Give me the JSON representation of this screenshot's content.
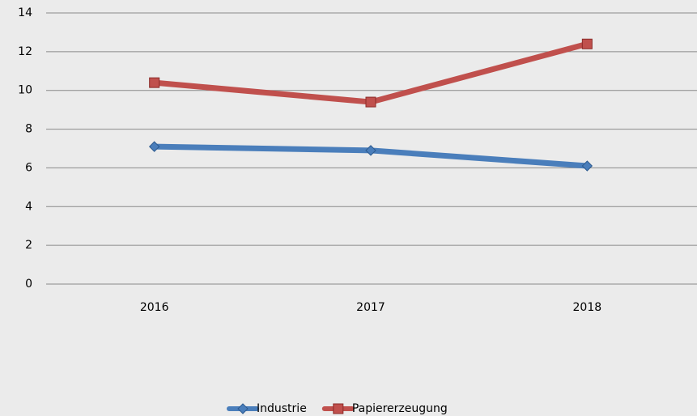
{
  "chart_data": {
    "type": "line",
    "categories": [
      "2016",
      "2017",
      "2018"
    ],
    "series": [
      {
        "name": "Industrie",
        "color": "#4a7ebb",
        "marker": "diamond",
        "values": [
          7.1,
          6.9,
          6.1
        ]
      },
      {
        "name": "Papiererzeugung",
        "color": "#c0504d",
        "marker": "square",
        "values": [
          10.4,
          9.4,
          12.4
        ]
      }
    ],
    "ylim": [
      0,
      14
    ],
    "yticks": [
      0,
      2,
      4,
      6,
      8,
      10,
      12,
      14
    ],
    "grid": true,
    "legend": "bottom"
  }
}
